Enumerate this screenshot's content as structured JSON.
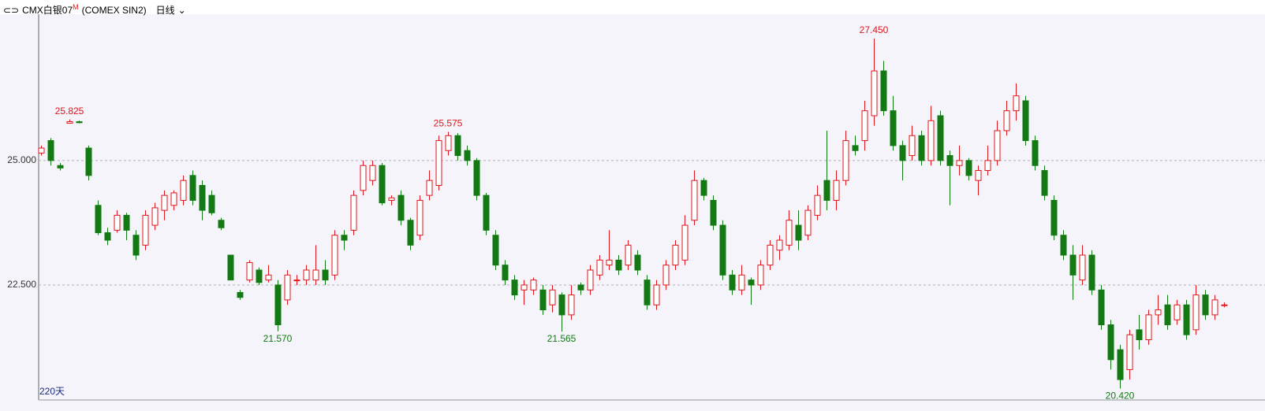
{
  "header": {
    "symbol": "CMX白银07",
    "flag": "M",
    "code": "(COMEX SIN2)",
    "period": "日线"
  },
  "chart_data": {
    "type": "candlestick",
    "footer": "220天",
    "ylim": [
      20.19,
      27.94
    ],
    "yticks": [
      {
        "value": 22.5,
        "label": "22.500"
      },
      {
        "value": 25,
        "label": "25.000"
      }
    ],
    "grid": true,
    "up_color": "#e0161c",
    "down_color": "#137a13",
    "open": [
      25.15,
      25.4,
      24.9,
      25.75,
      25.78,
      25.25,
      24.1,
      23.55,
      23.6,
      23.9,
      23.5,
      23.3,
      23.7,
      24.0,
      24.1,
      24.2,
      24.7,
      24.5,
      24.3,
      23.8,
      23.1,
      22.35,
      22.6,
      22.8,
      22.6,
      22.5,
      22.2,
      22.6,
      22.6,
      22.6,
      22.8,
      22.7,
      23.5,
      23.6,
      24.4,
      24.6,
      24.9,
      24.2,
      24.3,
      23.8,
      23.5,
      24.3,
      24.5,
      25.2,
      25.5,
      25.2,
      25.0,
      24.3,
      23.5,
      22.9,
      22.6,
      22.4,
      22.4,
      22.4,
      22.1,
      22.3,
      21.9,
      22.5,
      22.4,
      22.7,
      22.9,
      23.0,
      22.9,
      23.1,
      22.6,
      22.1,
      22.5,
      22.9,
      23.0,
      23.8,
      24.6,
      24.2,
      23.7,
      22.7,
      22.4,
      22.6,
      22.5,
      22.9,
      23.2,
      23.3,
      23.7,
      23.5,
      23.9,
      24.6,
      24.2,
      24.6,
      25.3,
      25.4,
      25.9,
      26.8,
      26.0,
      25.3,
      25.1,
      25.5,
      25.0,
      25.9,
      25.1,
      24.9,
      25.0,
      24.6,
      24.8,
      25.0,
      25.6,
      26.0,
      26.2,
      25.4,
      24.8,
      24.2,
      23.5,
      23.1,
      22.6,
      23.1,
      22.4,
      21.7,
      21.2,
      20.8,
      21.6,
      21.4,
      21.9,
      22.1,
      21.8,
      22.1,
      21.6,
      22.3,
      21.9,
      22.1
    ],
    "high": [
      25.3,
      25.45,
      24.95,
      25.825,
      25.8,
      25.3,
      24.2,
      23.65,
      24.0,
      23.95,
      23.6,
      24.0,
      24.15,
      24.4,
      24.4,
      24.7,
      24.8,
      24.6,
      24.4,
      23.85,
      23.1,
      22.4,
      23.0,
      22.85,
      22.9,
      22.6,
      22.8,
      22.7,
      22.9,
      23.3,
      23.0,
      23.6,
      23.6,
      24.4,
      25.0,
      25.0,
      24.95,
      24.3,
      24.4,
      23.85,
      24.3,
      24.8,
      25.5,
      25.575,
      25.55,
      25.3,
      25.05,
      24.35,
      23.6,
      23.0,
      22.7,
      22.6,
      22.65,
      22.5,
      22.5,
      22.35,
      22.5,
      22.55,
      22.9,
      23.1,
      23.6,
      23.1,
      23.4,
      23.2,
      22.7,
      22.6,
      23.0,
      23.4,
      23.9,
      24.8,
      24.65,
      24.3,
      23.8,
      22.8,
      22.9,
      22.65,
      23.0,
      23.4,
      23.5,
      24.0,
      24.0,
      24.1,
      24.5,
      25.6,
      24.8,
      25.6,
      25.5,
      26.2,
      27.45,
      27.0,
      26.3,
      25.4,
      25.7,
      25.6,
      26.1,
      26.0,
      25.2,
      25.3,
      25.05,
      24.9,
      25.3,
      25.8,
      26.2,
      26.55,
      26.3,
      25.5,
      24.9,
      24.3,
      23.6,
      23.3,
      23.3,
      23.2,
      22.5,
      21.8,
      21.3,
      21.6,
      21.9,
      22.0,
      22.3,
      22.3,
      22.2,
      22.2,
      22.5,
      22.4,
      22.3,
      22.15
    ],
    "low": [
      25.1,
      24.9,
      24.8,
      25.75,
      25.75,
      24.6,
      23.5,
      23.3,
      23.55,
      23.4,
      23.0,
      23.2,
      23.6,
      23.8,
      24.0,
      24.1,
      24.1,
      23.8,
      23.9,
      23.6,
      22.6,
      22.2,
      22.55,
      22.5,
      22.55,
      21.57,
      22.1,
      22.5,
      22.5,
      22.5,
      22.5,
      22.6,
      23.2,
      23.5,
      24.3,
      24.5,
      24.1,
      24.1,
      23.7,
      23.2,
      23.4,
      24.2,
      24.4,
      25.1,
      25.0,
      24.9,
      24.2,
      23.5,
      22.8,
      22.5,
      22.2,
      22.1,
      22.3,
      21.9,
      21.95,
      21.565,
      21.8,
      22.3,
      22.3,
      22.6,
      22.8,
      22.7,
      22.8,
      22.7,
      22.0,
      22.0,
      22.4,
      22.8,
      22.9,
      23.7,
      24.2,
      23.6,
      22.6,
      22.3,
      22.3,
      22.1,
      22.4,
      22.8,
      23.0,
      23.2,
      23.2,
      23.4,
      23.8,
      24.0,
      24.0,
      24.5,
      25.1,
      25.2,
      25.7,
      25.9,
      25.2,
      24.6,
      25.0,
      24.9,
      24.9,
      24.9,
      24.1,
      24.7,
      24.6,
      24.3,
      24.7,
      24.9,
      25.5,
      25.8,
      25.3,
      24.8,
      24.2,
      23.4,
      23.0,
      22.2,
      22.5,
      22.3,
      21.6,
      20.8,
      20.42,
      20.6,
      21.2,
      21.3,
      21.7,
      21.6,
      21.7,
      21.4,
      21.5,
      21.8,
      21.8,
      22.05
    ],
    "close": [
      25.25,
      25.0,
      24.85,
      25.78,
      25.76,
      24.7,
      23.55,
      23.4,
      23.9,
      23.6,
      23.1,
      23.9,
      24.05,
      24.3,
      24.35,
      24.6,
      24.2,
      24.0,
      23.95,
      23.65,
      22.6,
      22.25,
      22.95,
      22.55,
      22.7,
      21.7,
      22.7,
      22.6,
      22.8,
      22.8,
      22.6,
      23.5,
      23.4,
      24.3,
      24.9,
      24.9,
      24.15,
      24.25,
      23.8,
      23.3,
      24.2,
      24.6,
      25.4,
      25.5,
      25.1,
      25.0,
      24.3,
      23.6,
      22.9,
      22.6,
      22.3,
      22.5,
      22.6,
      22.0,
      22.4,
      21.9,
      22.3,
      22.4,
      22.8,
      23.0,
      23.0,
      22.8,
      23.3,
      22.8,
      22.1,
      22.5,
      22.9,
      23.3,
      23.7,
      24.6,
      24.3,
      23.7,
      22.7,
      22.4,
      22.7,
      22.5,
      22.9,
      23.3,
      23.4,
      23.8,
      23.4,
      24.0,
      24.3,
      24.2,
      24.6,
      25.4,
      25.2,
      26.0,
      26.8,
      26.0,
      25.3,
      25.0,
      25.5,
      25.0,
      25.8,
      25.0,
      24.9,
      25.0,
      24.7,
      24.8,
      25.0,
      25.6,
      26.0,
      26.3,
      25.4,
      24.9,
      24.3,
      23.5,
      23.1,
      22.7,
      23.1,
      22.4,
      21.7,
      21.0,
      20.6,
      21.5,
      21.4,
      21.9,
      22.0,
      21.7,
      22.1,
      21.5,
      22.3,
      21.9,
      22.2,
      22.1
    ],
    "annotations": [
      {
        "value": 25.825,
        "label": "25.825"
      },
      {
        "value": 25.575,
        "label": "25.575"
      },
      {
        "value": 27.45,
        "label": "27.450"
      },
      {
        "value": 21.57,
        "label": "21.570"
      },
      {
        "value": 21.565,
        "label": "21.565"
      },
      {
        "value": 20.42,
        "label": "20.420"
      }
    ]
  }
}
